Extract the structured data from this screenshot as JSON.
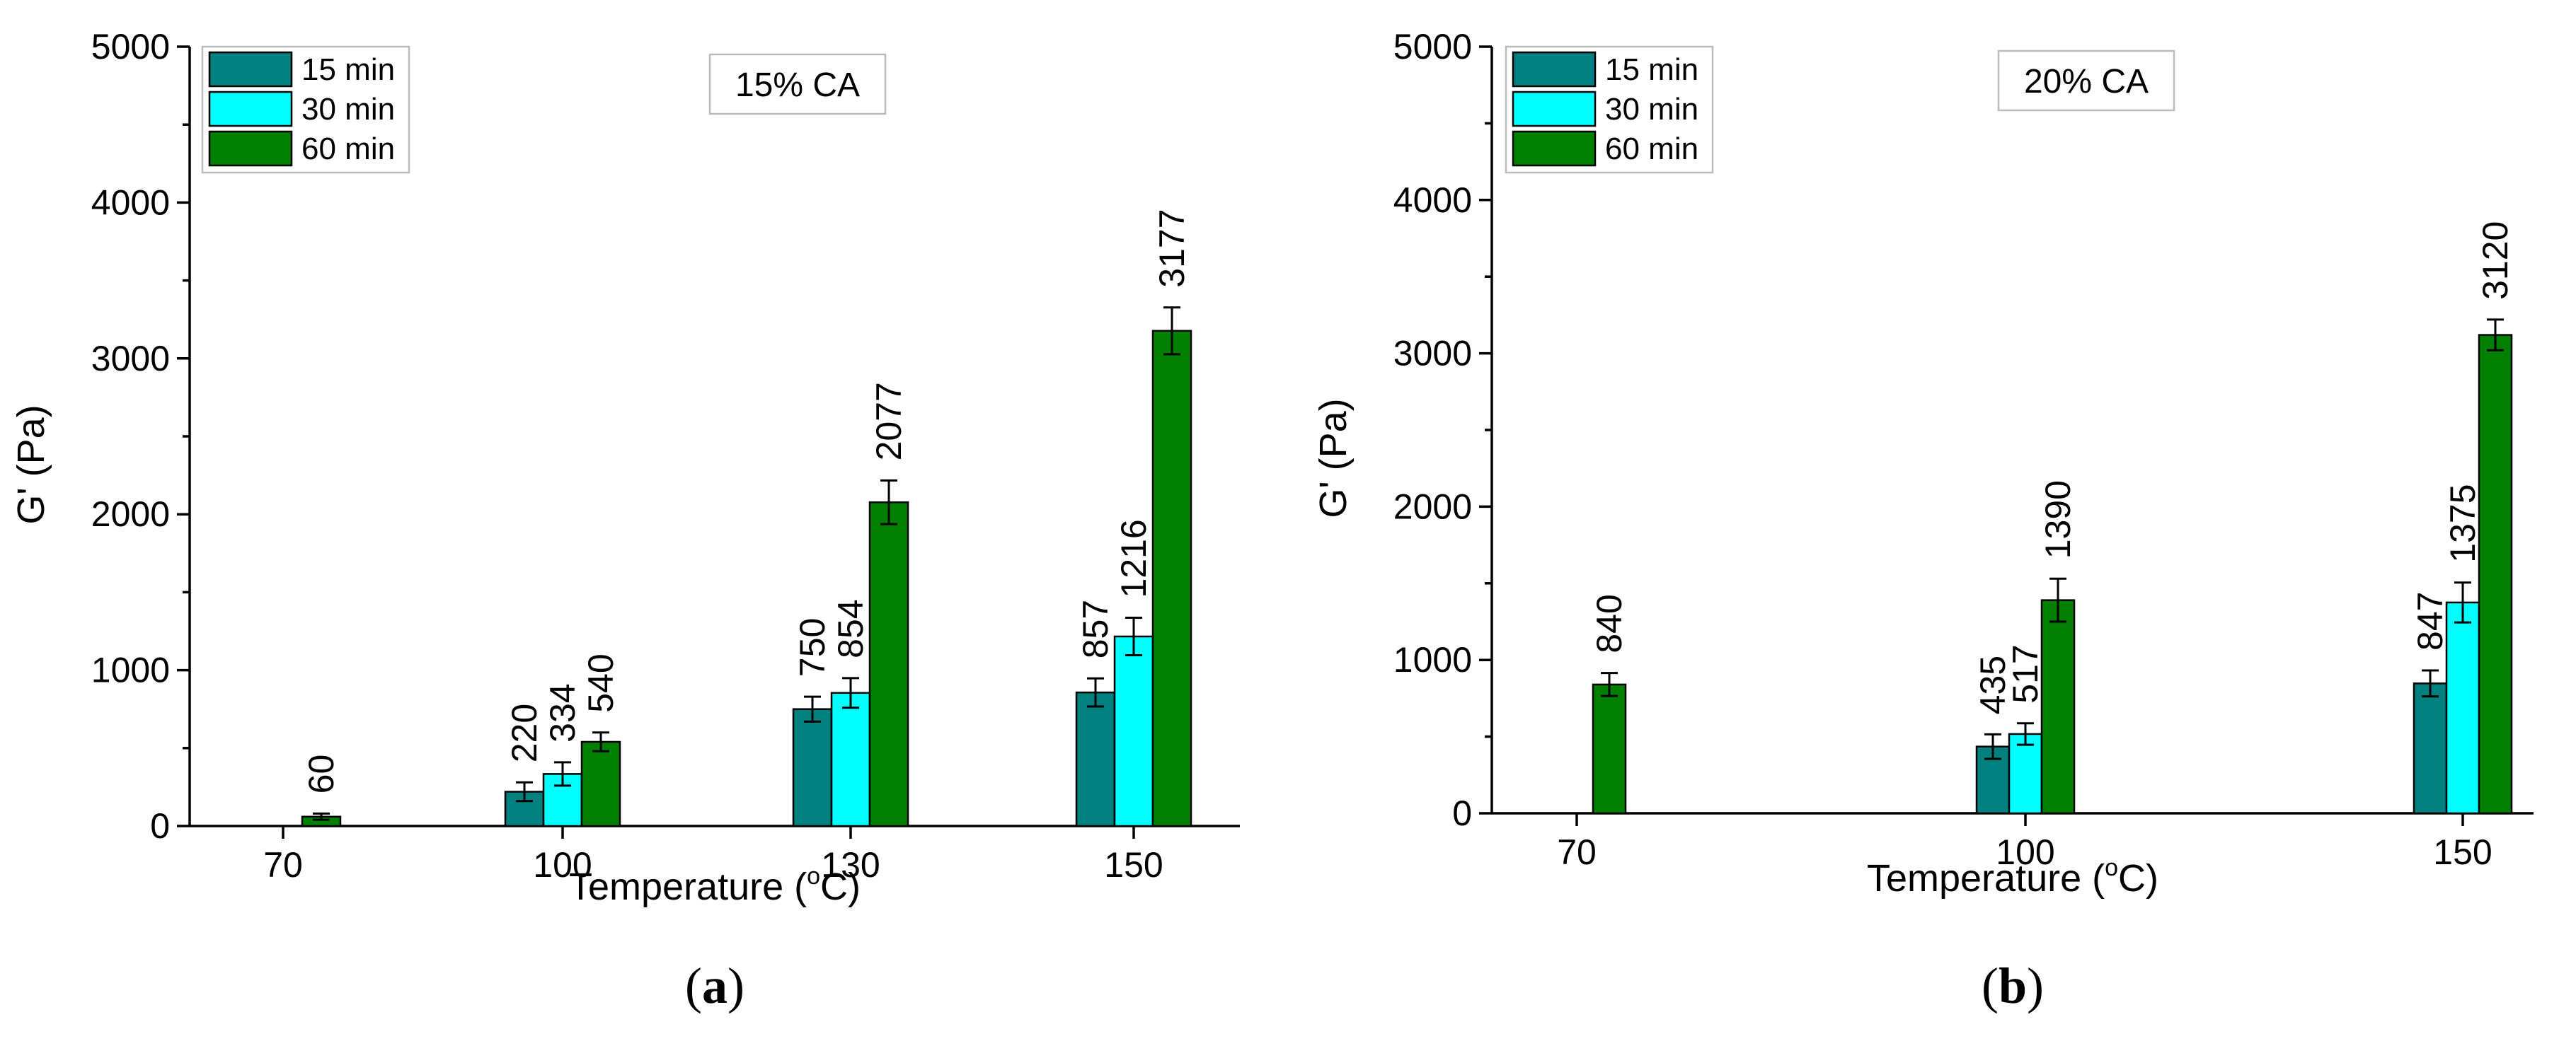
{
  "colors": {
    "15 min": "#00807f",
    "30 min": "#00ffff",
    "60 min": "#007f00"
  },
  "chart_data": [
    {
      "type": "bar",
      "panel_label": "a",
      "condition": "15% CA",
      "xlabel_text": "Temperature (",
      "xlabel_unit": "C)",
      "xlabel_degree": "o",
      "ylabel": "G' (Pa)",
      "ylim": [
        0,
        5000
      ],
      "yticks": [
        0,
        1000,
        2000,
        3000,
        4000,
        5000
      ],
      "categories": [
        "70",
        "100",
        "130",
        "150"
      ],
      "legend": [
        "15 min",
        "30 min",
        "60 min"
      ],
      "series": [
        {
          "name": "15 min",
          "values": [
            null,
            220,
            750,
            857
          ],
          "errors": [
            null,
            60,
            80,
            90
          ]
        },
        {
          "name": "30 min",
          "values": [
            null,
            334,
            854,
            1216
          ],
          "errors": [
            null,
            75,
            95,
            120
          ]
        },
        {
          "name": "60 min",
          "values": [
            60,
            540,
            2077,
            3177
          ],
          "errors": [
            20,
            60,
            140,
            150
          ]
        }
      ],
      "bar_labels": [
        {
          "name": "15 min",
          "labels": [
            null,
            "220",
            "750",
            "857"
          ]
        },
        {
          "name": "30 min",
          "labels": [
            null,
            "334",
            "854",
            "1216"
          ]
        },
        {
          "name": "60 min",
          "labels": [
            "60",
            "540",
            "2077",
            "3177"
          ]
        }
      ]
    },
    {
      "type": "bar",
      "panel_label": "b",
      "condition": "20% CA",
      "xlabel_text": "Temperature (",
      "xlabel_unit": "C)",
      "xlabel_degree": "o",
      "ylabel": "G' (Pa)",
      "ylim": [
        0,
        5000
      ],
      "yticks": [
        0,
        1000,
        2000,
        3000,
        4000,
        5000
      ],
      "categories": [
        "70",
        "100",
        "150"
      ],
      "legend": [
        "15 min",
        "30 min",
        "60 min"
      ],
      "series": [
        {
          "name": "15 min",
          "values": [
            null,
            435,
            847
          ],
          "errors": [
            null,
            80,
            85
          ]
        },
        {
          "name": "30 min",
          "values": [
            null,
            517,
            1375
          ],
          "errors": [
            null,
            70,
            130
          ]
        },
        {
          "name": "60 min",
          "values": [
            840,
            1390,
            3120
          ],
          "errors": [
            75,
            140,
            100
          ]
        }
      ],
      "bar_labels": [
        {
          "name": "15 min",
          "labels": [
            null,
            "435",
            "847"
          ]
        },
        {
          "name": "30 min",
          "labels": [
            null,
            "517",
            "1375"
          ]
        },
        {
          "name": "60 min",
          "labels": [
            "840",
            "1390",
            "3120"
          ]
        }
      ]
    }
  ]
}
